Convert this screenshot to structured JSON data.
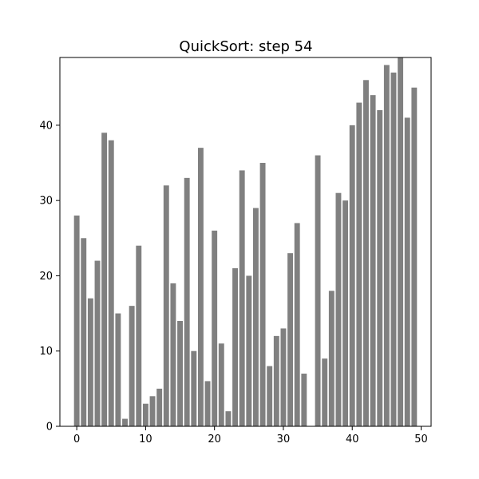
{
  "chart_data": {
    "type": "bar",
    "title": "QuickSort: step 54",
    "xlabel": "",
    "ylabel": "",
    "x": [
      0,
      1,
      2,
      3,
      4,
      5,
      6,
      7,
      8,
      9,
      10,
      11,
      12,
      13,
      14,
      15,
      16,
      17,
      18,
      19,
      20,
      21,
      22,
      23,
      24,
      25,
      26,
      27,
      28,
      29,
      30,
      31,
      32,
      33,
      34,
      35,
      36,
      37,
      38,
      39,
      40,
      41,
      42,
      43,
      44,
      45,
      46,
      47,
      48,
      49
    ],
    "values": [
      28,
      25,
      17,
      22,
      39,
      38,
      15,
      1,
      16,
      24,
      3,
      4,
      5,
      32,
      19,
      14,
      33,
      10,
      37,
      6,
      26,
      11,
      2,
      21,
      34,
      20,
      29,
      35,
      8,
      12,
      13,
      23,
      27,
      7,
      0,
      36,
      9,
      18,
      31,
      30,
      40,
      43,
      46,
      44,
      42,
      48,
      47,
      49,
      41,
      45
    ],
    "xlim": [
      -2.45,
      51.45
    ],
    "ylim": [
      0,
      49
    ],
    "xticks": [
      0,
      10,
      20,
      30,
      40,
      50
    ],
    "yticks": [
      0,
      10,
      20,
      30,
      40
    ],
    "bar_color": "#808080",
    "grid": false,
    "legend": "none"
  }
}
